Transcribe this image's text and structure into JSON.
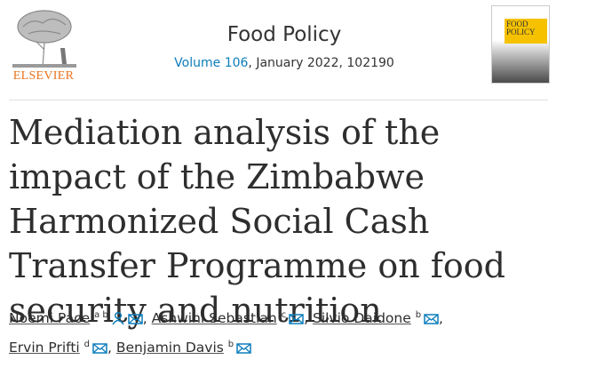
{
  "header": {
    "publisher": "ELSEVIER",
    "journal": "Food Policy",
    "volume": "Volume 106",
    "issue_info": ", January 2022, 102190",
    "cover_title": "FOOD POLICY"
  },
  "article": {
    "title": "Mediation analysis of the impact of the Zimbabwe Harmonized Social Cash Transfer Programme on food security and nutrition",
    "authors": [
      {
        "name": "Noemi Pace",
        "affiliations": "a b",
        "corresponding": true,
        "separator": ","
      },
      {
        "name": "Ashwini Sebastian",
        "affiliations": "c",
        "corresponding": false,
        "separator": ","
      },
      {
        "name": "Silvio Daidone",
        "affiliations": "b",
        "corresponding": false,
        "separator": ","
      },
      {
        "name": "Ervin Prifti",
        "affiliations": "d",
        "corresponding": false,
        "separator": ","
      },
      {
        "name": "Benjamin Davis",
        "affiliations": "b",
        "corresponding": false
      }
    ]
  }
}
